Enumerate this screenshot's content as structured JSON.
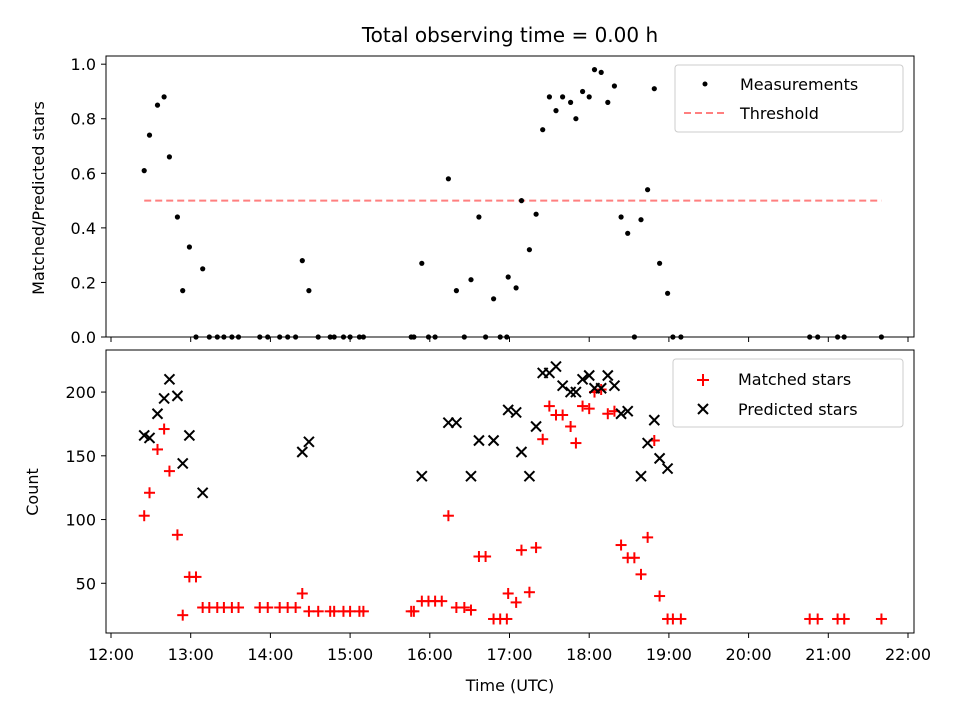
{
  "chart_data": [
    {
      "type": "scatter",
      "title": "Total observing time = 0.00 h",
      "xlabel": "",
      "ylabel": "Matched/Predicted stars",
      "xlim": [
        "12:00",
        "22:00"
      ],
      "ylim": [
        0,
        1.03
      ],
      "yticks": [
        "0.0",
        "0.2",
        "0.4",
        "0.6",
        "0.8",
        "1.0"
      ],
      "grid": false,
      "legend": "top-right",
      "series": [
        {
          "name": "Measurements",
          "marker": "dot",
          "color": "#000000",
          "points": [
            {
              "x": "12:25",
              "y": 0.61
            },
            {
              "x": "12:29",
              "y": 0.74
            },
            {
              "x": "12:35",
              "y": 0.85
            },
            {
              "x": "12:40",
              "y": 0.88
            },
            {
              "x": "12:44",
              "y": 0.66
            },
            {
              "x": "12:50",
              "y": 0.44
            },
            {
              "x": "12:54",
              "y": 0.17
            },
            {
              "x": "12:59",
              "y": 0.33
            },
            {
              "x": "13:04",
              "y": 0.0
            },
            {
              "x": "13:09",
              "y": 0.25
            },
            {
              "x": "13:14",
              "y": 0.0
            },
            {
              "x": "13:20",
              "y": 0.0
            },
            {
              "x": "13:25",
              "y": 0.0
            },
            {
              "x": "13:31",
              "y": 0.0
            },
            {
              "x": "13:36",
              "y": 0.0
            },
            {
              "x": "13:52",
              "y": 0.0
            },
            {
              "x": "13:58",
              "y": 0.0
            },
            {
              "x": "14:07",
              "y": 0.0
            },
            {
              "x": "14:13",
              "y": 0.0
            },
            {
              "x": "14:19",
              "y": 0.0
            },
            {
              "x": "14:24",
              "y": 0.28
            },
            {
              "x": "14:29",
              "y": 0.17
            },
            {
              "x": "14:36",
              "y": 0.0
            },
            {
              "x": "14:45",
              "y": 0.0
            },
            {
              "x": "14:48",
              "y": 0.0
            },
            {
              "x": "14:55",
              "y": 0.0
            },
            {
              "x": "15:00",
              "y": 0.0
            },
            {
              "x": "15:07",
              "y": 0.0
            },
            {
              "x": "15:10",
              "y": 0.0
            },
            {
              "x": "15:46",
              "y": 0.0
            },
            {
              "x": "15:48",
              "y": 0.0
            },
            {
              "x": "15:54",
              "y": 0.27
            },
            {
              "x": "15:59",
              "y": 0.0
            },
            {
              "x": "16:04",
              "y": 0.0
            },
            {
              "x": "16:14",
              "y": 0.58
            },
            {
              "x": "16:20",
              "y": 0.17
            },
            {
              "x": "16:26",
              "y": 0.0
            },
            {
              "x": "16:31",
              "y": 0.21
            },
            {
              "x": "16:37",
              "y": 0.44
            },
            {
              "x": "16:42",
              "y": 0.0
            },
            {
              "x": "16:48",
              "y": 0.14
            },
            {
              "x": "16:53",
              "y": 0.0
            },
            {
              "x": "16:58",
              "y": 0.0
            },
            {
              "x": "16:59",
              "y": 0.22
            },
            {
              "x": "17:05",
              "y": 0.18
            },
            {
              "x": "17:09",
              "y": 0.5
            },
            {
              "x": "17:15",
              "y": 0.32
            },
            {
              "x": "17:20",
              "y": 0.45
            },
            {
              "x": "17:25",
              "y": 0.76
            },
            {
              "x": "17:30",
              "y": 0.88
            },
            {
              "x": "17:35",
              "y": 0.83
            },
            {
              "x": "17:40",
              "y": 0.88
            },
            {
              "x": "17:46",
              "y": 0.86
            },
            {
              "x": "17:50",
              "y": 0.8
            },
            {
              "x": "17:55",
              "y": 0.9
            },
            {
              "x": "18:00",
              "y": 0.88
            },
            {
              "x": "18:04",
              "y": 0.98
            },
            {
              "x": "18:09",
              "y": 0.97
            },
            {
              "x": "18:14",
              "y": 0.86
            },
            {
              "x": "18:19",
              "y": 0.92
            },
            {
              "x": "18:24",
              "y": 0.44
            },
            {
              "x": "18:29",
              "y": 0.38
            },
            {
              "x": "18:34",
              "y": 0.0
            },
            {
              "x": "18:39",
              "y": 0.43
            },
            {
              "x": "18:44",
              "y": 0.54
            },
            {
              "x": "18:49",
              "y": 0.91
            },
            {
              "x": "18:53",
              "y": 0.27
            },
            {
              "x": "18:59",
              "y": 0.16
            },
            {
              "x": "19:03",
              "y": 0.0
            },
            {
              "x": "19:09",
              "y": 0.0
            },
            {
              "x": "20:46",
              "y": 0.0
            },
            {
              "x": "20:52",
              "y": 0.0
            },
            {
              "x": "21:07",
              "y": 0.0
            },
            {
              "x": "21:12",
              "y": 0.0
            },
            {
              "x": "21:40",
              "y": 0.0
            }
          ]
        },
        {
          "name": "Threshold",
          "style": "dashed-line",
          "color": "#ff7f7f",
          "points": [
            {
              "x": "12:25",
              "y": 0.5
            },
            {
              "x": "21:40",
              "y": 0.5
            }
          ]
        }
      ]
    },
    {
      "type": "scatter",
      "title": "",
      "xlabel": "Time (UTC)",
      "ylabel": "Count",
      "xlim": [
        "12:00",
        "22:00"
      ],
      "ylim": [
        11,
        233
      ],
      "xticks": [
        "12:00",
        "13:00",
        "14:00",
        "15:00",
        "16:00",
        "17:00",
        "18:00",
        "19:00",
        "20:00",
        "21:00",
        "22:00"
      ],
      "yticks": [
        "50",
        "100",
        "150",
        "200"
      ],
      "grid": false,
      "legend": "top-right",
      "series": [
        {
          "name": "Matched stars",
          "marker": "plus",
          "color": "#ff0000",
          "points": [
            {
              "x": "12:25",
              "y": 103
            },
            {
              "x": "12:29",
              "y": 121
            },
            {
              "x": "12:35",
              "y": 155
            },
            {
              "x": "12:40",
              "y": 171
            },
            {
              "x": "12:44",
              "y": 138
            },
            {
              "x": "12:50",
              "y": 88
            },
            {
              "x": "12:54",
              "y": 25
            },
            {
              "x": "12:59",
              "y": 55
            },
            {
              "x": "13:04",
              "y": 55
            },
            {
              "x": "13:09",
              "y": 31
            },
            {
              "x": "13:14",
              "y": 31
            },
            {
              "x": "13:20",
              "y": 31
            },
            {
              "x": "13:25",
              "y": 31
            },
            {
              "x": "13:31",
              "y": 31
            },
            {
              "x": "13:36",
              "y": 31
            },
            {
              "x": "13:52",
              "y": 31
            },
            {
              "x": "13:58",
              "y": 31
            },
            {
              "x": "14:07",
              "y": 31
            },
            {
              "x": "14:13",
              "y": 31
            },
            {
              "x": "14:19",
              "y": 31
            },
            {
              "x": "14:24",
              "y": 42
            },
            {
              "x": "14:29",
              "y": 28
            },
            {
              "x": "14:36",
              "y": 28
            },
            {
              "x": "14:45",
              "y": 28
            },
            {
              "x": "14:48",
              "y": 28
            },
            {
              "x": "14:55",
              "y": 28
            },
            {
              "x": "15:00",
              "y": 28
            },
            {
              "x": "15:07",
              "y": 28
            },
            {
              "x": "15:10",
              "y": 28
            },
            {
              "x": "15:46",
              "y": 28
            },
            {
              "x": "15:48",
              "y": 28
            },
            {
              "x": "15:54",
              "y": 36
            },
            {
              "x": "15:59",
              "y": 36
            },
            {
              "x": "16:04",
              "y": 36
            },
            {
              "x": "16:09",
              "y": 36
            },
            {
              "x": "16:14",
              "y": 103
            },
            {
              "x": "16:20",
              "y": 31
            },
            {
              "x": "16:26",
              "y": 31
            },
            {
              "x": "16:31",
              "y": 29
            },
            {
              "x": "16:37",
              "y": 71
            },
            {
              "x": "16:42",
              "y": 71
            },
            {
              "x": "16:48",
              "y": 22
            },
            {
              "x": "16:53",
              "y": 22
            },
            {
              "x": "16:58",
              "y": 22
            },
            {
              "x": "16:59",
              "y": 42
            },
            {
              "x": "17:05",
              "y": 35
            },
            {
              "x": "17:09",
              "y": 76
            },
            {
              "x": "17:15",
              "y": 43
            },
            {
              "x": "17:20",
              "y": 78
            },
            {
              "x": "17:25",
              "y": 163
            },
            {
              "x": "17:30",
              "y": 189
            },
            {
              "x": "17:35",
              "y": 182
            },
            {
              "x": "17:40",
              "y": 182
            },
            {
              "x": "17:46",
              "y": 173
            },
            {
              "x": "17:50",
              "y": 160
            },
            {
              "x": "17:55",
              "y": 189
            },
            {
              "x": "18:00",
              "y": 187
            },
            {
              "x": "18:04",
              "y": 200
            },
            {
              "x": "18:09",
              "y": 202
            },
            {
              "x": "18:14",
              "y": 183
            },
            {
              "x": "18:19",
              "y": 185
            },
            {
              "x": "18:24",
              "y": 80
            },
            {
              "x": "18:29",
              "y": 70
            },
            {
              "x": "18:34",
              "y": 70
            },
            {
              "x": "18:39",
              "y": 57
            },
            {
              "x": "18:44",
              "y": 86
            },
            {
              "x": "18:49",
              "y": 162
            },
            {
              "x": "18:53",
              "y": 40
            },
            {
              "x": "18:59",
              "y": 22
            },
            {
              "x": "19:03",
              "y": 22
            },
            {
              "x": "19:09",
              "y": 22
            },
            {
              "x": "20:46",
              "y": 22
            },
            {
              "x": "20:52",
              "y": 22
            },
            {
              "x": "21:07",
              "y": 22
            },
            {
              "x": "21:12",
              "y": 22
            },
            {
              "x": "21:40",
              "y": 22
            }
          ]
        },
        {
          "name": "Predicted stars",
          "marker": "x",
          "color": "#000000",
          "points": [
            {
              "x": "12:25",
              "y": 166
            },
            {
              "x": "12:29",
              "y": 164
            },
            {
              "x": "12:35",
              "y": 183
            },
            {
              "x": "12:40",
              "y": 195
            },
            {
              "x": "12:44",
              "y": 210
            },
            {
              "x": "12:50",
              "y": 197
            },
            {
              "x": "12:54",
              "y": 144
            },
            {
              "x": "12:59",
              "y": 166
            },
            {
              "x": "13:09",
              "y": 121
            },
            {
              "x": "14:24",
              "y": 153
            },
            {
              "x": "14:29",
              "y": 161
            },
            {
              "x": "15:54",
              "y": 134
            },
            {
              "x": "16:14",
              "y": 176
            },
            {
              "x": "16:20",
              "y": 176
            },
            {
              "x": "16:31",
              "y": 134
            },
            {
              "x": "16:37",
              "y": 162
            },
            {
              "x": "16:48",
              "y": 162
            },
            {
              "x": "16:59",
              "y": 186
            },
            {
              "x": "17:05",
              "y": 184
            },
            {
              "x": "17:09",
              "y": 153
            },
            {
              "x": "17:15",
              "y": 134
            },
            {
              "x": "17:20",
              "y": 173
            },
            {
              "x": "17:25",
              "y": 215
            },
            {
              "x": "17:30",
              "y": 215
            },
            {
              "x": "17:35",
              "y": 220
            },
            {
              "x": "17:40",
              "y": 205
            },
            {
              "x": "17:46",
              "y": 200
            },
            {
              "x": "17:50",
              "y": 200
            },
            {
              "x": "17:55",
              "y": 210
            },
            {
              "x": "18:00",
              "y": 213
            },
            {
              "x": "18:04",
              "y": 203
            },
            {
              "x": "18:09",
              "y": 203
            },
            {
              "x": "18:14",
              "y": 213
            },
            {
              "x": "18:19",
              "y": 205
            },
            {
              "x": "18:24",
              "y": 183
            },
            {
              "x": "18:29",
              "y": 185
            },
            {
              "x": "18:39",
              "y": 134
            },
            {
              "x": "18:44",
              "y": 160
            },
            {
              "x": "18:49",
              "y": 178
            },
            {
              "x": "18:53",
              "y": 148
            },
            {
              "x": "18:59",
              "y": 140
            }
          ]
        }
      ]
    }
  ]
}
